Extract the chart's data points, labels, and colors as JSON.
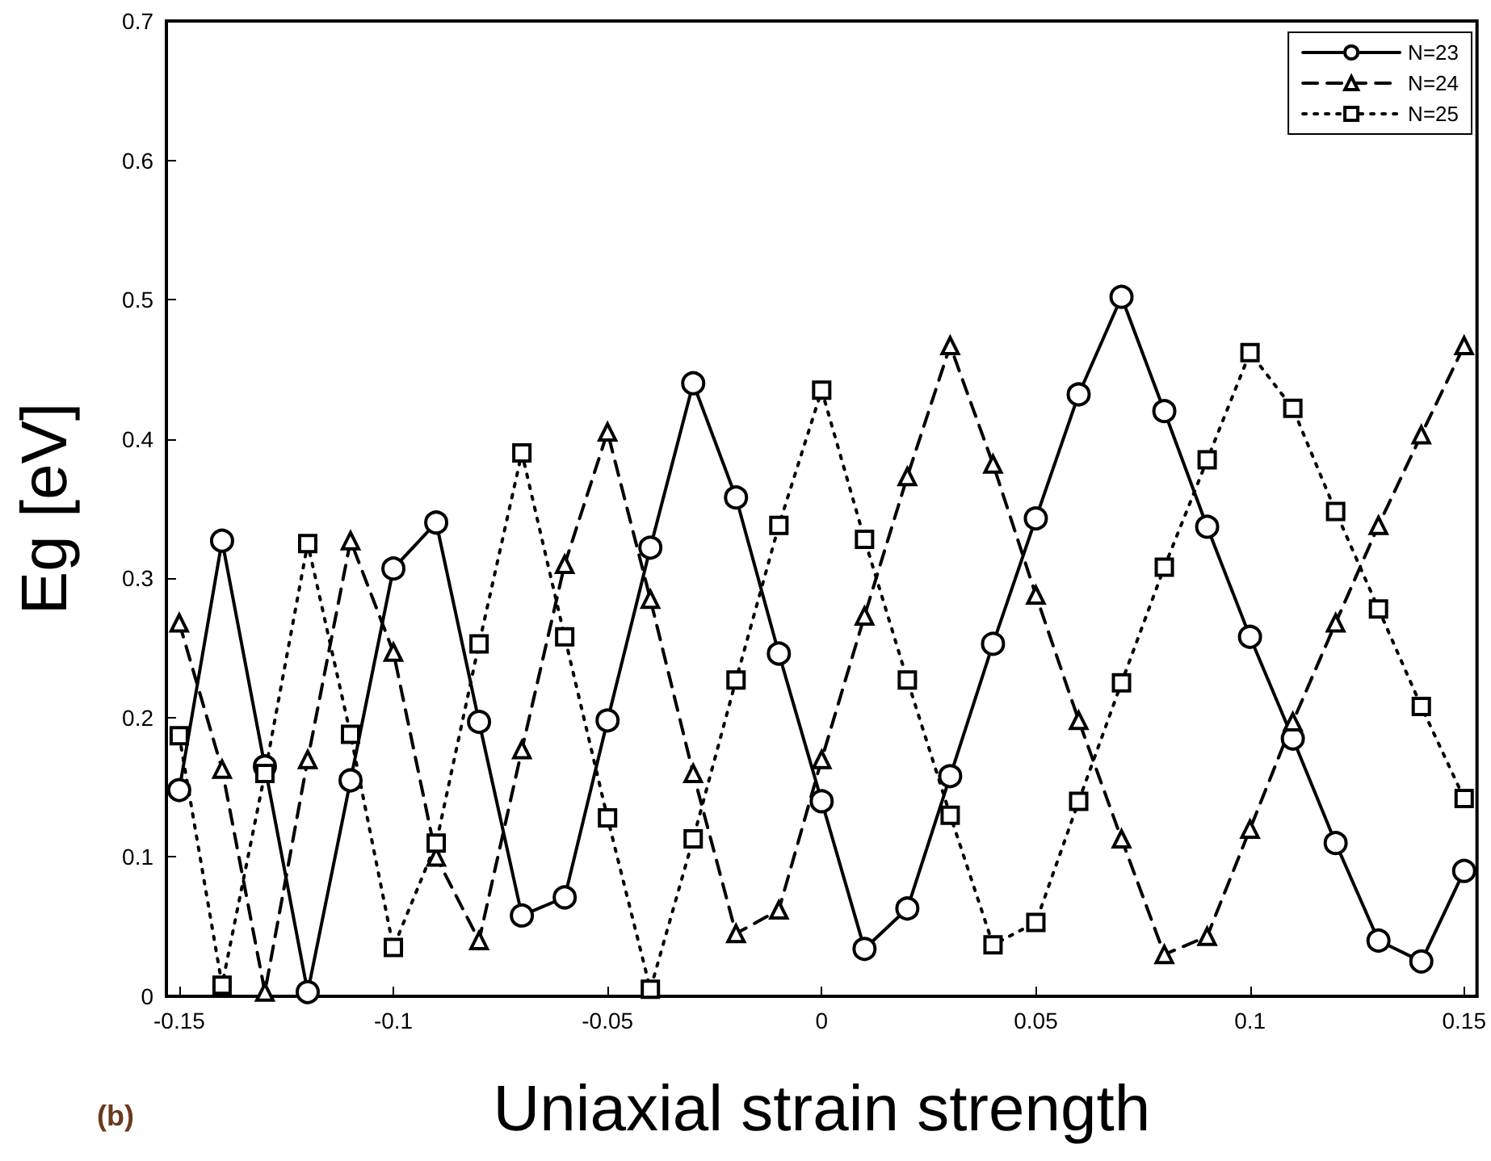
{
  "chart_data": {
    "type": "line",
    "xlabel": "Uniaxial strain strength",
    "ylabel": "Eg [eV]",
    "annotations": [
      "(b)"
    ],
    "x": [
      -0.15,
      -0.14,
      -0.13,
      -0.12,
      -0.11,
      -0.1,
      -0.09,
      -0.08,
      -0.07,
      -0.06,
      -0.05,
      -0.04,
      -0.03,
      -0.02,
      -0.01,
      0,
      0.01,
      0.02,
      0.03,
      0.04,
      0.05,
      0.06,
      0.07,
      0.08,
      0.09,
      0.1,
      0.11,
      0.12,
      0.13,
      0.14,
      0.15
    ],
    "series": [
      {
        "name": "N=23",
        "color": "#000000",
        "marker": "circle",
        "line_style": "solid",
        "values": [
          0.148,
          0.327,
          0.165,
          0.003,
          0.155,
          0.307,
          0.34,
          0.197,
          0.058,
          0.071,
          0.198,
          0.322,
          0.44,
          0.358,
          0.246,
          0.14,
          0.034,
          0.063,
          0.158,
          0.253,
          0.343,
          0.432,
          0.502,
          0.42,
          0.337,
          0.258,
          0.185,
          0.11,
          0.04,
          0.025,
          0.09
        ]
      },
      {
        "name": "N=24",
        "color": "#000000",
        "marker": "triangle",
        "line_style": "dashed",
        "values": [
          0.268,
          0.163,
          0.003,
          0.17,
          0.327,
          0.247,
          0.1,
          0.04,
          0.177,
          0.31,
          0.405,
          0.285,
          0.16,
          0.045,
          0.062,
          0.17,
          0.273,
          0.373,
          0.467,
          0.382,
          0.288,
          0.198,
          0.113,
          0.03,
          0.043,
          0.12,
          0.197,
          0.268,
          0.338,
          0.403,
          0.467
        ]
      },
      {
        "name": "N=25",
        "color": "#000000",
        "marker": "square",
        "line_style": "dotted",
        "values": [
          0.187,
          0.008,
          0.16,
          0.325,
          0.188,
          0.035,
          0.11,
          0.253,
          0.39,
          0.258,
          0.128,
          0.005,
          0.113,
          0.227,
          0.338,
          0.435,
          0.328,
          0.227,
          0.13,
          0.037,
          0.053,
          0.14,
          0.225,
          0.308,
          0.385,
          0.462,
          0.422,
          0.348,
          0.278,
          0.208,
          0.142
        ]
      }
    ],
    "xlim": [
      -0.153,
      0.153
    ],
    "xticks": [
      -0.15,
      -0.1,
      -0.05,
      0,
      0.05,
      0.1,
      0.15
    ],
    "ylim": [
      0,
      0.7
    ],
    "yticks": [
      0,
      0.1,
      0.2,
      0.3,
      0.4,
      0.5,
      0.6,
      0.7
    ],
    "grid": false,
    "legend": "top right"
  }
}
